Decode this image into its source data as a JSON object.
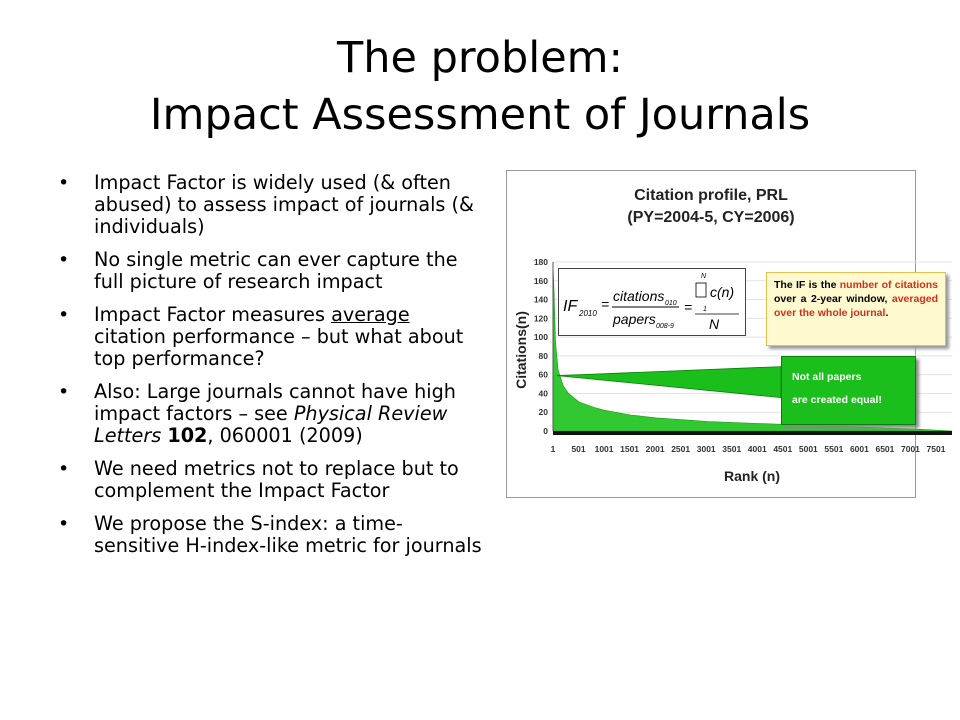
{
  "title": {
    "line1": "The problem:",
    "line2": "Impact Assessment of Journals"
  },
  "bullets": [
    {
      "text": "Impact Factor is widely used (& often abused) to assess impact of journals (& individuals)"
    },
    {
      "text": "No single metric can ever capture the full picture of research impact"
    },
    {
      "pre": "Impact Factor measures ",
      "underlined": "average",
      "post": " citation performance – but what about top performance?"
    },
    {
      "pre": "Also: Large journals cannot have high impact factors – see ",
      "italic": "Physical Review Letters",
      "mid": " ",
      "bold": "102",
      "post": ", 060001 (2009)"
    },
    {
      "text": "We need metrics not to replace but to complement the Impact Factor"
    },
    {
      "text": "We propose the S-index: a time-sensitive H-index-like metric for journals"
    }
  ],
  "figure": {
    "title_line1": "Citation profile, PRL",
    "title_line2": "(PY=2004-5, CY=2006)",
    "formula": {
      "lhs": "IF",
      "lhs_sub": "2010",
      "num": "citations",
      "num_sub": "010",
      "den": "papers",
      "den_sub": "008-9",
      "sum_top": "N",
      "sum_body": "c(n)",
      "rhs_num": "1",
      "rhs_den": "N"
    },
    "if_note": {
      "p1": "The IF is the ",
      "r1": "number of citations",
      "p2": " over a 2-year window, ",
      "r2": "averaged over the whole journal",
      "p3": "."
    },
    "green_note": {
      "line1": "Not all papers",
      "line2": "are created equal!"
    },
    "colors": {
      "fill": "#32c832",
      "note_red": "#d22f1b",
      "note_bg": "#fff9cf",
      "green_box": "#1bbf1b"
    }
  },
  "chart_data": {
    "type": "area",
    "title": "Citation profile, PRL (PY=2004-5, CY=2006)",
    "xlabel": "Rank (n)",
    "ylabel": "Citations(n)",
    "xlim": [
      1,
      7700
    ],
    "ylim": [
      0,
      180
    ],
    "yticks": [
      0,
      20,
      40,
      60,
      80,
      100,
      120,
      140,
      160,
      180
    ],
    "xticks": [
      "1",
      "501",
      "1001",
      "1501",
      "2001",
      "2501",
      "3001",
      "3501",
      "4001",
      "4501",
      "5001",
      "5501",
      "6001",
      "6501",
      "7001",
      "7501"
    ],
    "x": [
      1,
      20,
      50,
      100,
      200,
      300,
      500,
      800,
      1000,
      1500,
      2000,
      2500,
      3000,
      4000,
      5000,
      6000,
      6500,
      7000,
      7700
    ],
    "y": [
      178,
      150,
      95,
      65,
      48,
      40,
      31,
      25,
      22,
      17,
      14,
      12,
      10,
      8,
      6,
      4,
      3,
      2,
      0
    ],
    "average_line": 59,
    "legend": "none"
  }
}
